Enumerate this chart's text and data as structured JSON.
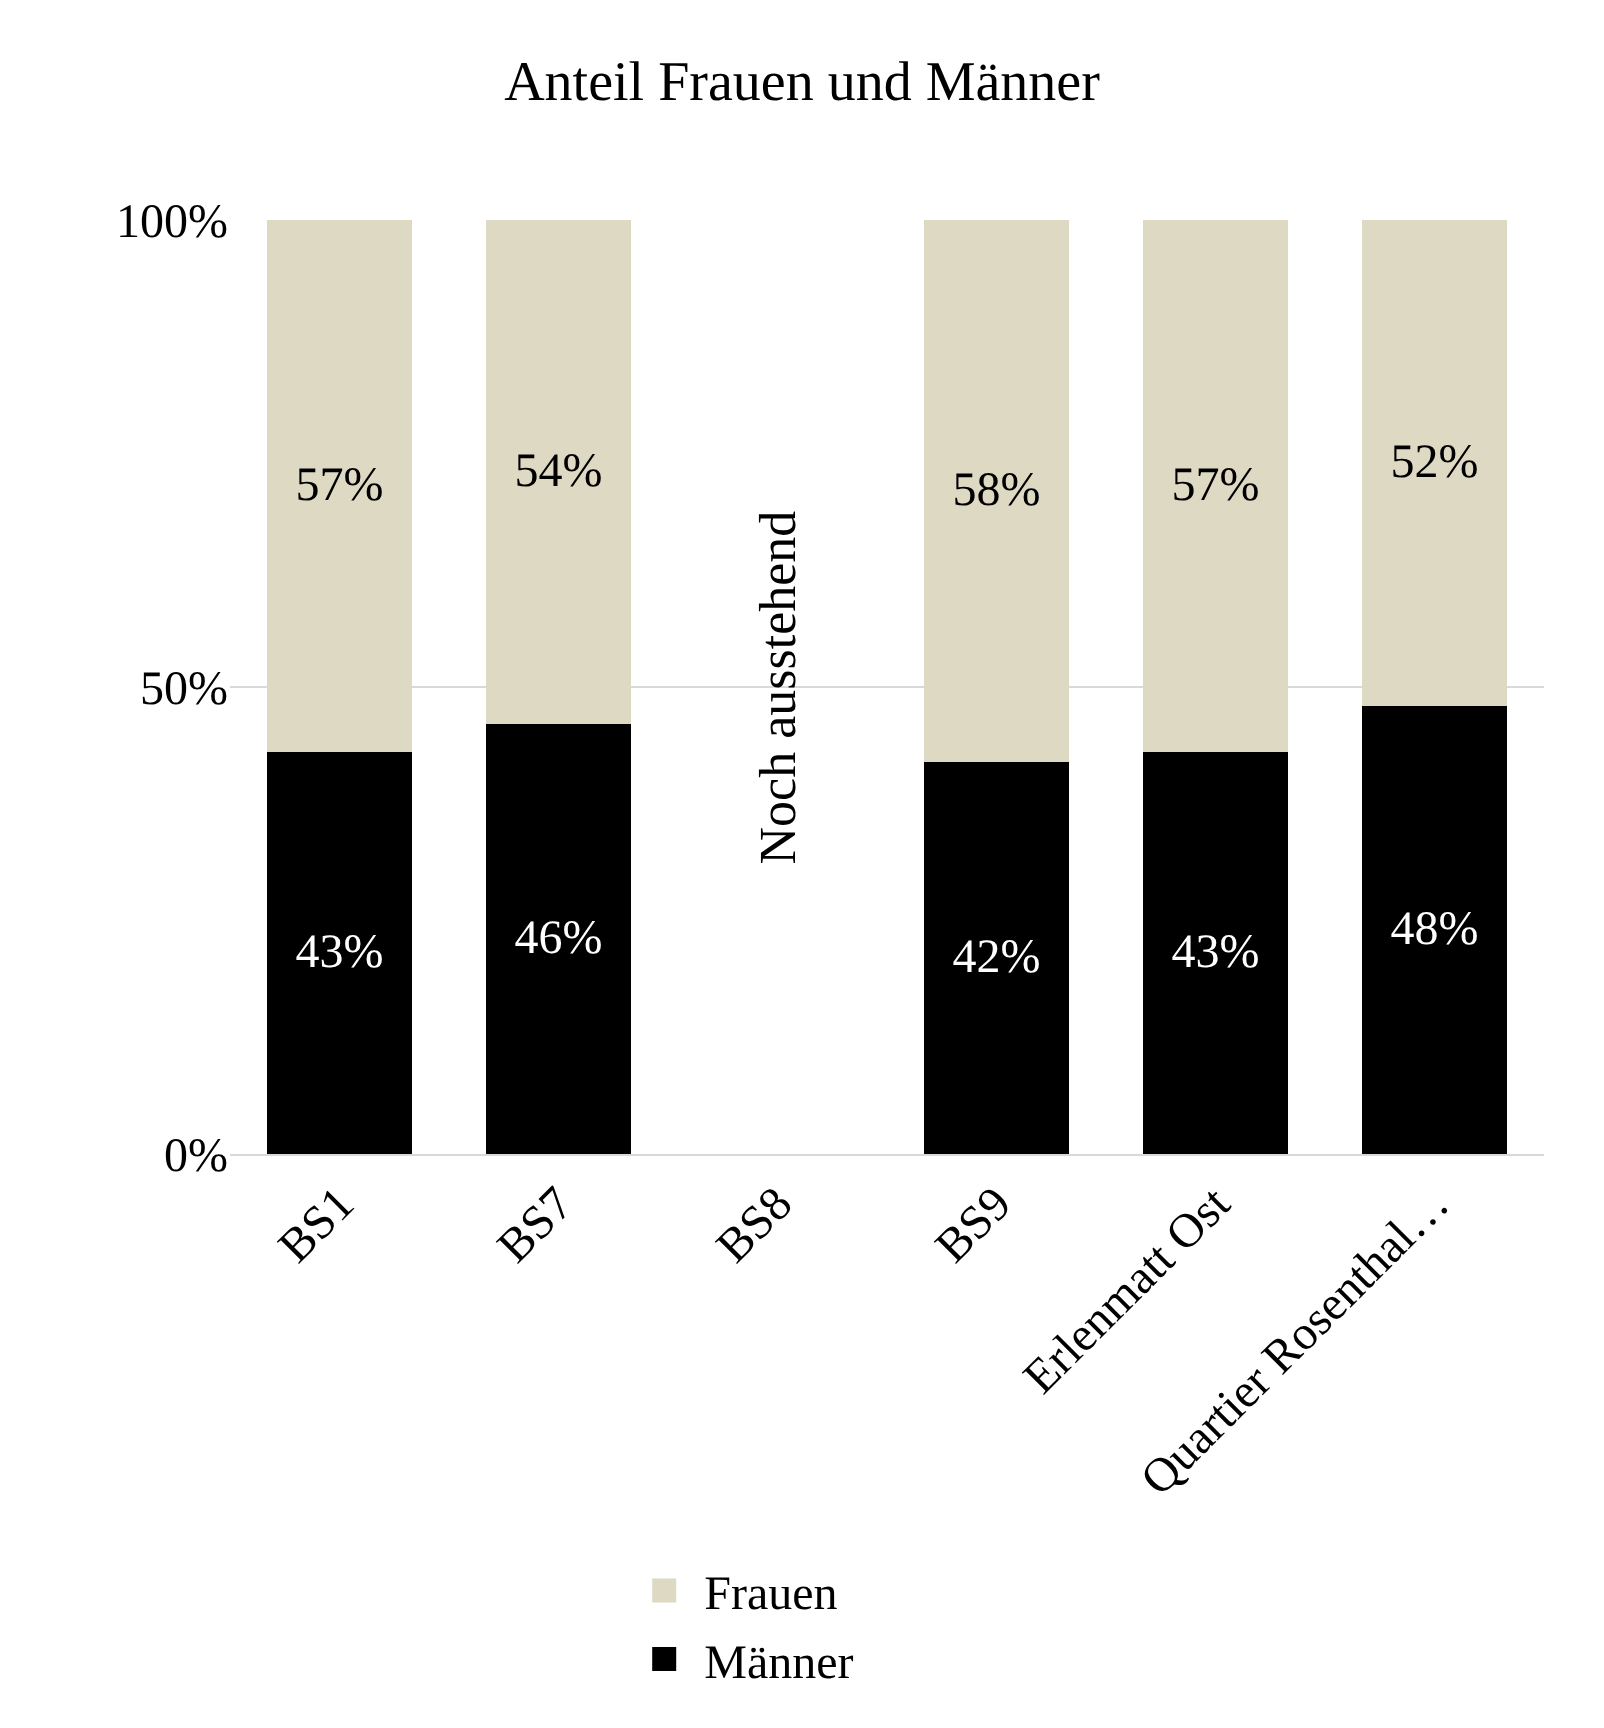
{
  "chart_data": {
    "type": "bar",
    "title": "Anteil Frauen und Männer",
    "stacked": true,
    "categories": [
      "BS1",
      "BS7",
      "BS8",
      "BS9",
      "Erlenmatt Ost",
      "Quartier Rosenthal…"
    ],
    "series": [
      {
        "name": "Männer",
        "color": "#000000",
        "values": [
          43,
          46,
          null,
          42,
          43,
          48
        ],
        "value_labels": [
          "43%",
          "46%",
          null,
          "42%",
          "43%",
          "48%"
        ]
      },
      {
        "name": "Frauen",
        "color": "#ddd9c3",
        "values": [
          57,
          54,
          null,
          58,
          57,
          52
        ],
        "value_labels": [
          "57%",
          "54%",
          null,
          "58%",
          "57%",
          "52%"
        ]
      }
    ],
    "ylim": [
      0,
      100
    ],
    "yticks": [
      {
        "value": 0,
        "label": "0%"
      },
      {
        "value": 50,
        "label": "50%"
      },
      {
        "value": 100,
        "label": "100%"
      }
    ],
    "grid": "y",
    "legend": "bottom",
    "annotations": [
      "Noch ausstehend"
    ]
  }
}
